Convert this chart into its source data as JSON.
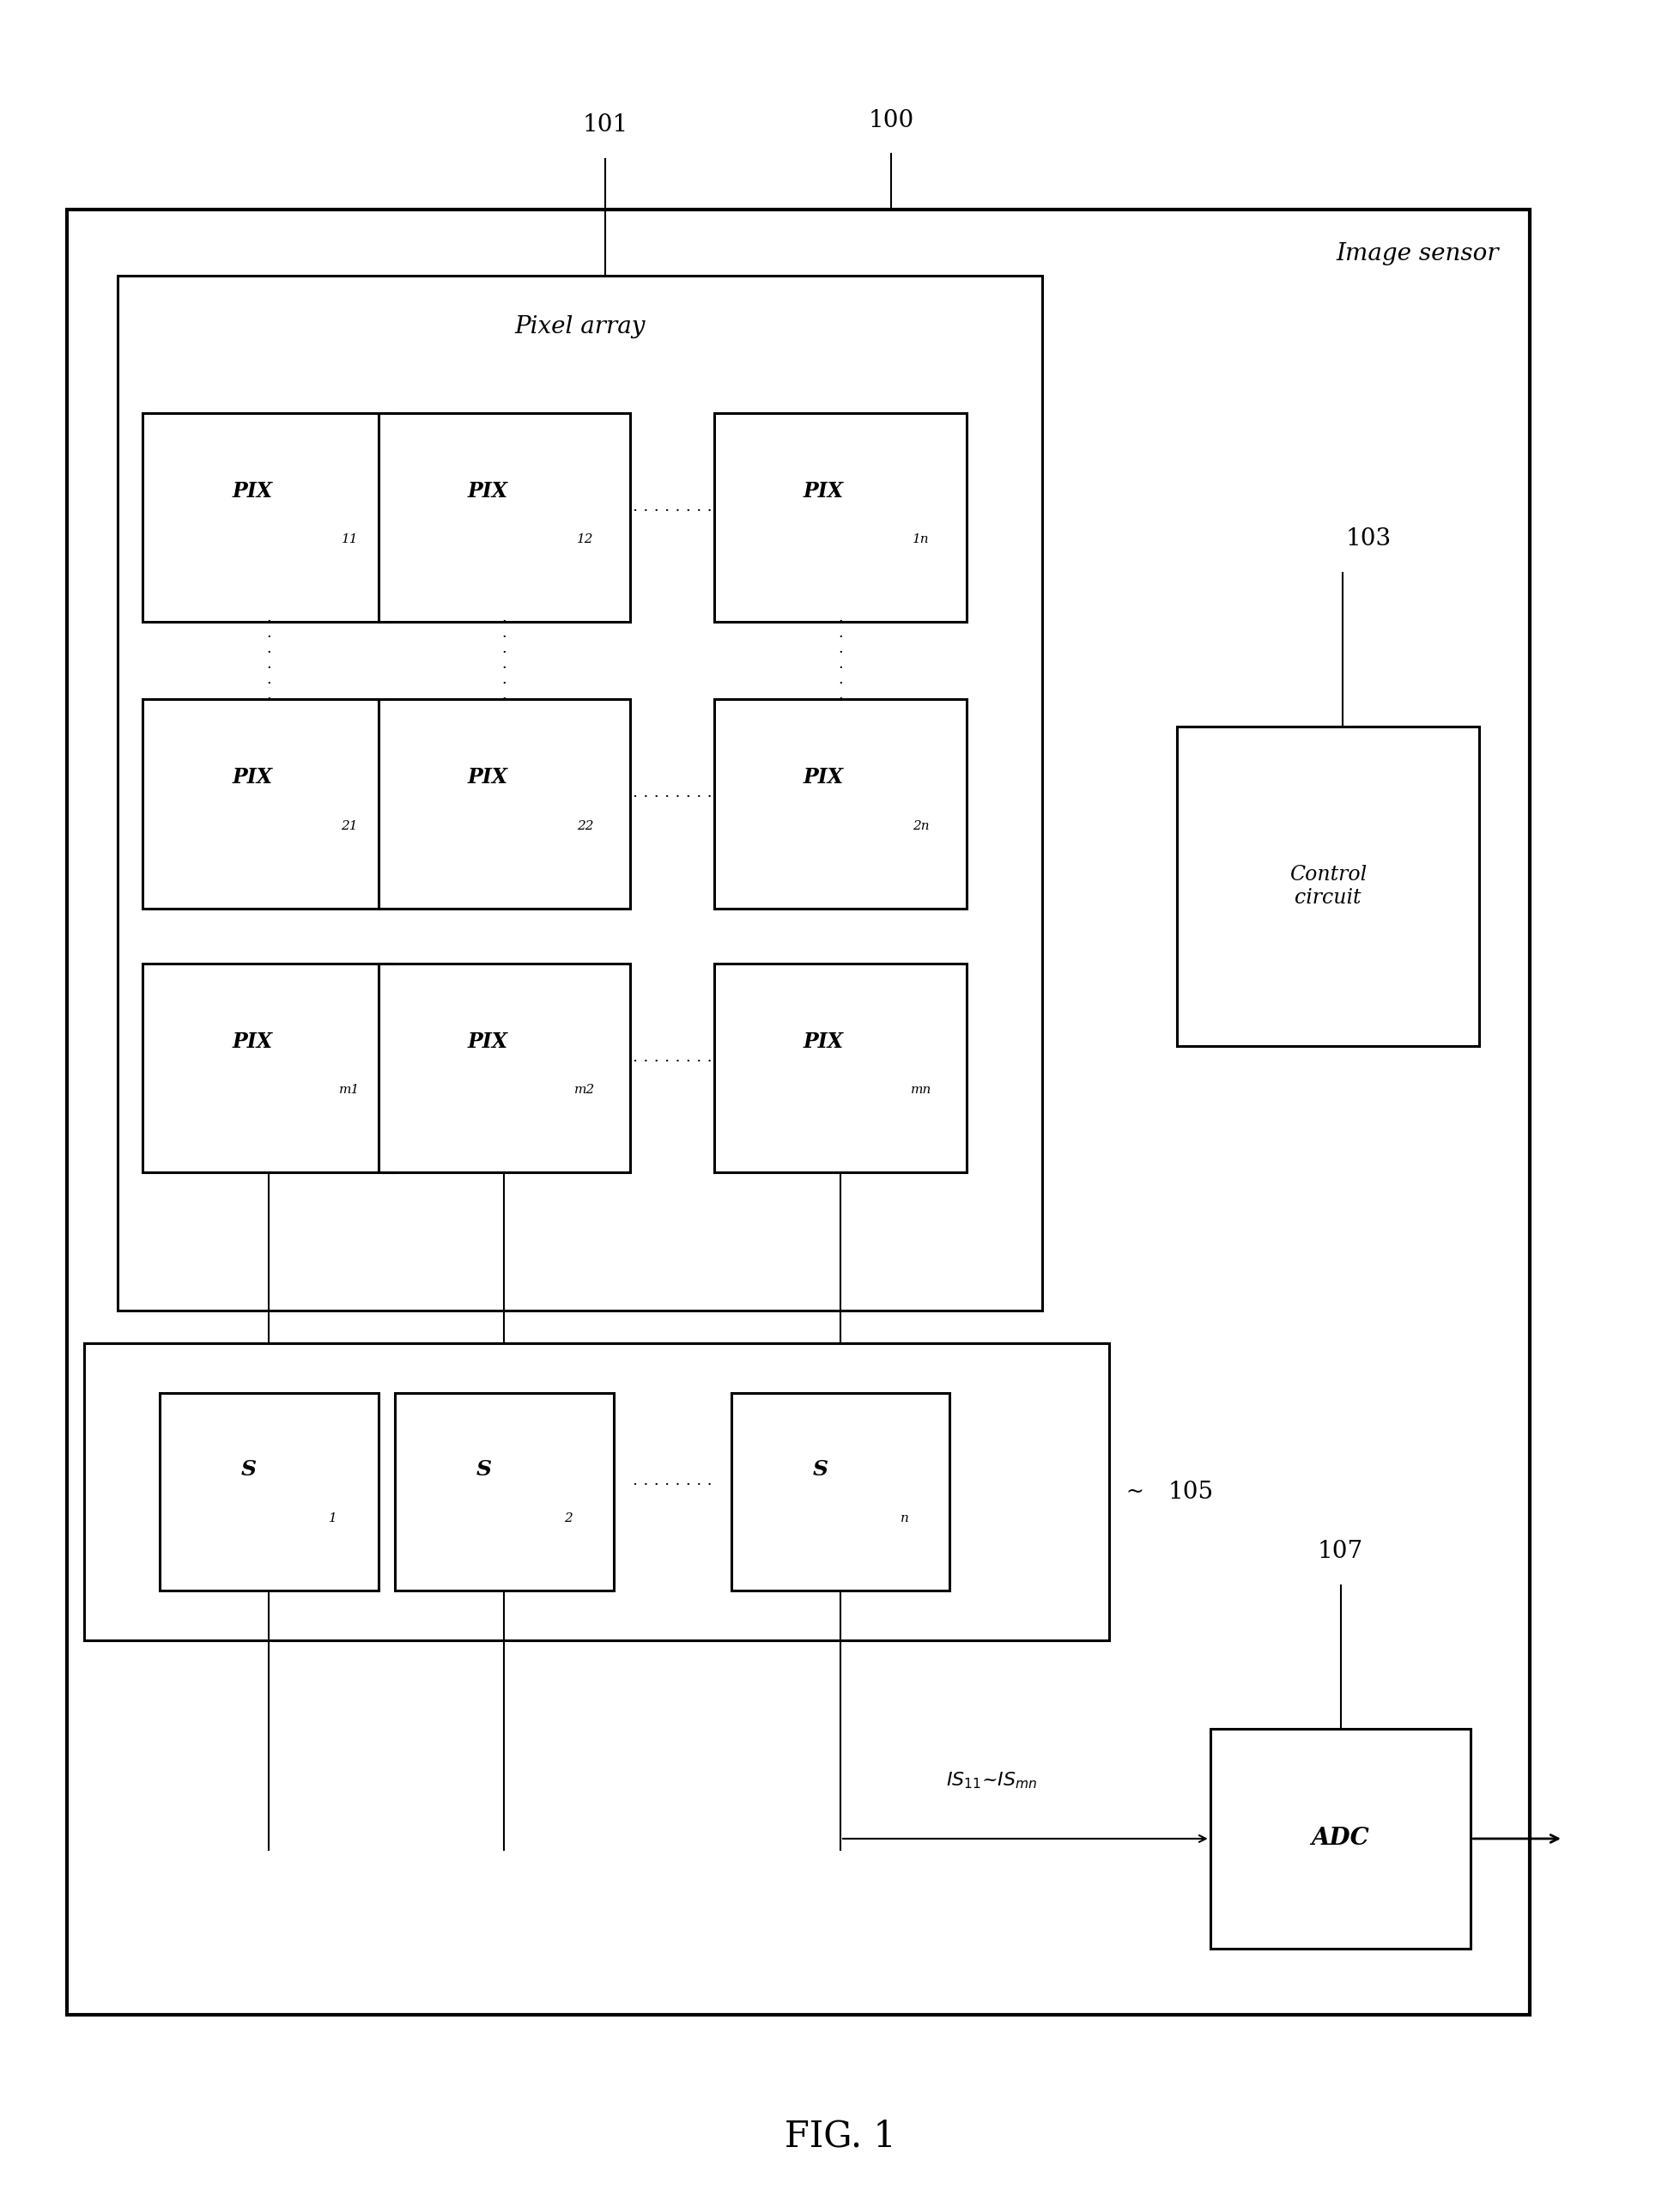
{
  "bg_color": "#ffffff",
  "fig_width": 19.58,
  "fig_height": 25.64,
  "title": "FIG. 1",
  "image_sensor_label": "Image sensor",
  "pixel_array_label": "Pixel array",
  "label_100": "100",
  "label_101": "101",
  "label_103": "103",
  "label_105": "105",
  "label_107": "107",
  "adc_label": "ADC",
  "control_label": "Control\ncircuit",
  "pix_labels": [
    [
      [
        "PIX",
        "11"
      ],
      [
        "PIX",
        "12"
      ],
      [
        "PIX",
        "1n"
      ]
    ],
    [
      [
        "PIX",
        "21"
      ],
      [
        "PIX",
        "22"
      ],
      [
        "PIX",
        "2n"
      ]
    ],
    [
      [
        "PIX",
        "m1"
      ],
      [
        "PIX",
        "m2"
      ],
      [
        "PIX",
        "mn"
      ]
    ]
  ],
  "s_labels": [
    [
      "S",
      "1"
    ],
    [
      "S",
      "2"
    ],
    [
      "S",
      "n"
    ]
  ]
}
